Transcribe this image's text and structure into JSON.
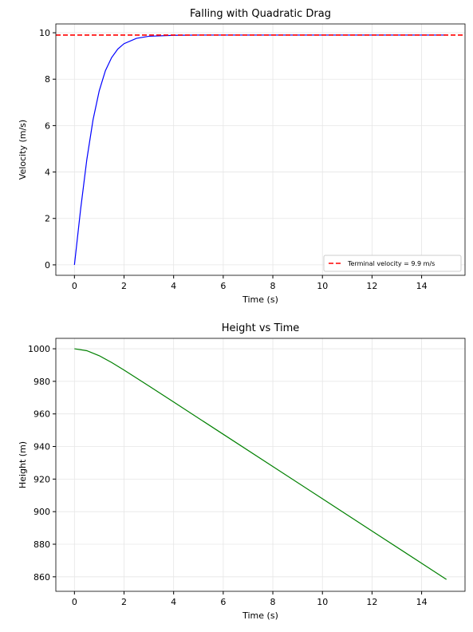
{
  "chart_data": [
    {
      "type": "line",
      "title": "Falling with Quadratic Drag",
      "xlabel": "Time (s)",
      "ylabel": "Velocity (m/s)",
      "x": [
        0,
        0.25,
        0.5,
        0.75,
        1,
        1.25,
        1.5,
        1.75,
        2,
        2.5,
        3,
        4,
        5,
        6,
        7,
        8,
        9,
        10,
        11,
        12,
        13,
        14,
        15
      ],
      "series": [
        {
          "name": "Velocity",
          "color": "#0000ff",
          "values": [
            0,
            2.4,
            4.54,
            6.25,
            7.5,
            8.37,
            8.93,
            9.3,
            9.53,
            9.76,
            9.85,
            9.89,
            9.9,
            9.9,
            9.9,
            9.9,
            9.9,
            9.9,
            9.9,
            9.9,
            9.9,
            9.9,
            9.9
          ]
        }
      ],
      "hlines": [
        {
          "name": "Terminal velocity = 9.9 m/s",
          "value": 9.9,
          "color": "#ff0000",
          "dashed": true
        }
      ],
      "xlim": [
        -0.75,
        15.75
      ],
      "xticks": [
        0,
        2,
        4,
        6,
        8,
        10,
        12,
        14
      ],
      "ylim": [
        -0.45,
        10.38
      ],
      "yticks": [
        0,
        2,
        4,
        6,
        8,
        10
      ],
      "grid": true,
      "legend": "lower right"
    },
    {
      "type": "line",
      "title": "Height vs Time",
      "xlabel": "Time (s)",
      "ylabel": "Height (m)",
      "x": [
        0,
        0.5,
        1,
        1.5,
        2,
        3,
        4,
        6,
        8,
        10,
        12,
        14,
        15
      ],
      "series": [
        {
          "name": "Height",
          "color": "#008000",
          "values": [
            1000,
            998.82,
            995.73,
            991.58,
            986.95,
            977.19,
            967.32,
            947.52,
            927.71,
            907.91,
            888.11,
            868.31,
            858.41
          ]
        }
      ],
      "xlim": [
        -0.75,
        15.75
      ],
      "xticks": [
        0,
        2,
        4,
        6,
        8,
        10,
        12,
        14
      ],
      "ylim": [
        851.1,
        1006.4
      ],
      "yticks": [
        860,
        880,
        900,
        920,
        940,
        960,
        980,
        1000
      ],
      "grid": true
    }
  ]
}
